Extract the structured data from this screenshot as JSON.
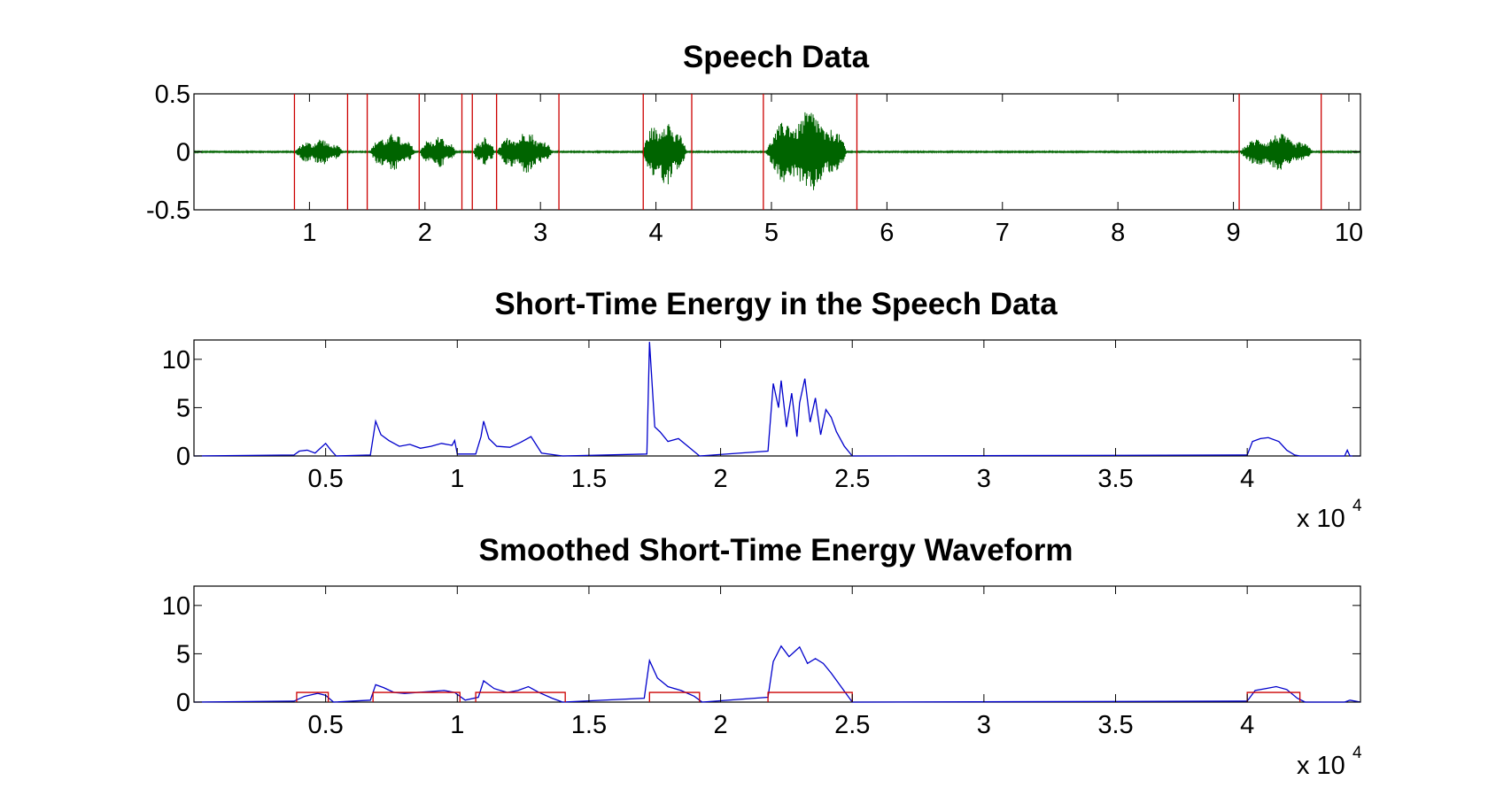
{
  "colors": {
    "waveform": "#006400",
    "boundary": "#cc0000",
    "energy": "#0000cc",
    "decision": "#cc0000"
  },
  "chart_data": [
    {
      "type": "line",
      "title": "Speech Data",
      "xlabel": "",
      "ylabel": "",
      "xlim": [
        0,
        10.1
      ],
      "ylim": [
        -0.5,
        0.5
      ],
      "x_ticks": [
        1,
        2,
        3,
        4,
        5,
        6,
        7,
        8,
        9,
        10
      ],
      "x_tick_labels": [
        "1",
        "2",
        "3",
        "4",
        "5",
        "6",
        "7",
        "8",
        "9",
        "10"
      ],
      "y_ticks": [
        0.5,
        0,
        -0.5
      ],
      "y_tick_labels": [
        "0.5",
        "0",
        "-0.5"
      ],
      "noise_amplitude": 0.006,
      "segments": [
        {
          "start": 0.87,
          "end": 1.33,
          "amplitude": 0.12
        },
        {
          "start": 1.52,
          "end": 1.95,
          "amplitude": 0.17
        },
        {
          "start": 1.95,
          "end": 2.3,
          "amplitude": 0.14
        },
        {
          "start": 2.42,
          "end": 2.62,
          "amplitude": 0.13
        },
        {
          "start": 2.62,
          "end": 3.15,
          "amplitude": 0.19
        },
        {
          "start": 3.88,
          "end": 4.3,
          "amplitude": 0.3
        },
        {
          "start": 4.95,
          "end": 5.72,
          "amplitude": 0.37
        },
        {
          "start": 9.05,
          "end": 9.75,
          "amplitude": 0.16
        }
      ],
      "boundaries": [
        0.87,
        1.33,
        1.5,
        1.95,
        2.32,
        2.41,
        2.62,
        3.16,
        3.89,
        4.31,
        4.93,
        5.74,
        9.05,
        9.76
      ],
      "grid": false
    },
    {
      "type": "line",
      "title": "Short-Time Energy in the Speech Data",
      "xlabel": "",
      "ylabel": "",
      "xlim": [
        0,
        44300
      ],
      "ylim": [
        0,
        12
      ],
      "x_ticks": [
        5000,
        10000,
        15000,
        20000,
        25000,
        30000,
        35000,
        40000
      ],
      "x_tick_labels": [
        "0.5",
        "1",
        "1.5",
        "2",
        "2.5",
        "3",
        "3.5",
        "4"
      ],
      "x_multiplier": "x 10",
      "x_multiplier_exp": "4",
      "y_ticks": [
        0,
        5,
        10
      ],
      "y_tick_labels": [
        "0",
        "5",
        "10"
      ],
      "series": [
        {
          "x": [
            0,
            3800,
            4000,
            4300,
            4600,
            4800,
            5000,
            5200,
            5400,
            6700,
            6900,
            7100,
            7400,
            7800,
            8200,
            8600,
            9000,
            9400,
            9800,
            9900,
            10000,
            10700,
            10900,
            11000,
            11200,
            11500,
            12000,
            12400,
            12800,
            13200,
            14000,
            17200,
            17300,
            17500,
            17700,
            18000,
            18400,
            18800,
            19200,
            21800,
            22000,
            22200,
            22300,
            22500,
            22700,
            22900,
            23000,
            23200,
            23400,
            23600,
            23800,
            24000,
            24200,
            24400,
            24700,
            25000,
            40000,
            40200,
            40500,
            40800,
            41200,
            41500,
            41800,
            42000,
            43700,
            43800,
            43900,
            44300
          ],
          "y": [
            0,
            0.1,
            0.5,
            0.6,
            0.3,
            0.8,
            1.3,
            0.6,
            0,
            0.1,
            3.6,
            2.2,
            1.6,
            1.0,
            1.2,
            0.8,
            1.0,
            1.3,
            1.1,
            1.6,
            0.2,
            0.2,
            2.0,
            3.6,
            1.8,
            1.0,
            0.9,
            1.4,
            2.0,
            0.3,
            0,
            0.2,
            11.8,
            3.0,
            2.5,
            1.5,
            1.8,
            0.9,
            0,
            0.5,
            7.5,
            5.0,
            7.8,
            3.0,
            6.5,
            2.0,
            5.5,
            8.0,
            3.5,
            6.0,
            2.2,
            4.8,
            4.0,
            2.5,
            1.0,
            0,
            0.1,
            1.5,
            1.8,
            1.9,
            1.5,
            0.6,
            0.1,
            0,
            0,
            0.6,
            0,
            0
          ]
        }
      ],
      "grid": false
    },
    {
      "type": "line",
      "title": "Smoothed Short-Time Energy Waveform",
      "xlabel": "",
      "ylabel": "",
      "xlim": [
        0,
        44300
      ],
      "ylim": [
        0,
        12
      ],
      "x_ticks": [
        5000,
        10000,
        15000,
        20000,
        25000,
        30000,
        35000,
        40000
      ],
      "x_tick_labels": [
        "0.5",
        "1",
        "1.5",
        "2",
        "2.5",
        "3",
        "3.5",
        "4"
      ],
      "x_multiplier": "x 10",
      "x_multiplier_exp": "4",
      "y_ticks": [
        0,
        5,
        10
      ],
      "y_tick_labels": [
        "0",
        "5",
        "10"
      ],
      "series": [
        {
          "x": [
            0,
            3800,
            4200,
            4700,
            5000,
            5300,
            6700,
            6900,
            7200,
            7600,
            8000,
            8500,
            9000,
            9500,
            9900,
            10300,
            10800,
            11000,
            11400,
            11900,
            12300,
            12700,
            13100,
            13600,
            14000,
            17100,
            17300,
            17600,
            18000,
            18500,
            19000,
            19300,
            21800,
            22000,
            22300,
            22600,
            22800,
            23000,
            23300,
            23600,
            23900,
            24200,
            24600,
            25000,
            40000,
            40300,
            40700,
            41100,
            41500,
            41900,
            42200,
            43700,
            43900,
            44300
          ],
          "y": [
            0,
            0.1,
            0.6,
            0.9,
            0.7,
            0,
            0.2,
            1.8,
            1.5,
            1.0,
            0.9,
            1.0,
            1.1,
            1.2,
            1.0,
            0.2,
            0.5,
            2.2,
            1.4,
            1.0,
            1.2,
            1.6,
            1.0,
            0.4,
            0,
            0.4,
            4.3,
            2.5,
            1.6,
            1.2,
            0.6,
            0,
            0.5,
            4.2,
            5.8,
            4.7,
            5.2,
            5.7,
            4.0,
            4.5,
            4.0,
            3.0,
            1.5,
            0,
            0.1,
            1.2,
            1.4,
            1.6,
            1.3,
            0.4,
            0,
            0,
            0.2,
            0
          ]
        }
      ],
      "decision": {
        "level": 1,
        "intervals": [
          [
            3900,
            5100
          ],
          [
            6800,
            10100
          ],
          [
            10700,
            14100
          ],
          [
            17300,
            19200
          ],
          [
            21800,
            25000
          ],
          [
            40000,
            42000
          ]
        ]
      },
      "grid": false
    }
  ]
}
